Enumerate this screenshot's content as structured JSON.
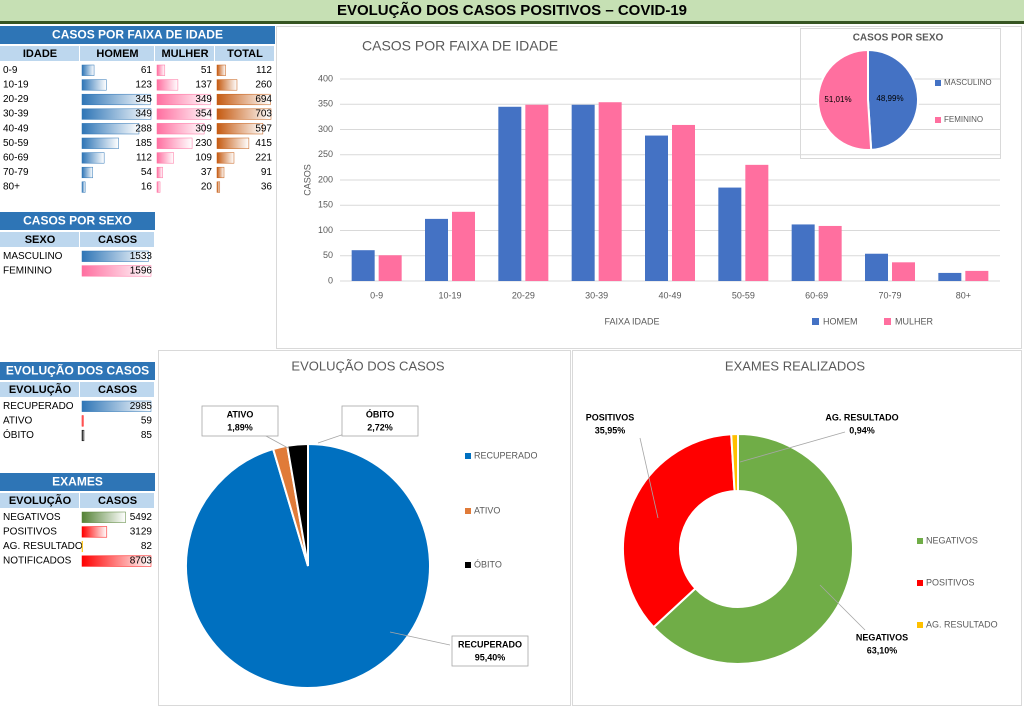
{
  "title": "EVOLUÇÃO DOS  CASOS POSITIVOS – COVID-19",
  "tables": [
    {
      "title": "CASOS POR FAIXA DE IDADE",
      "columns": [
        "IDADE",
        "HOMEM",
        "MULHER",
        "TOTAL"
      ],
      "rows": [
        [
          "0-9",
          61,
          51,
          112
        ],
        [
          "10-19",
          123,
          137,
          260
        ],
        [
          "20-29",
          345,
          349,
          694
        ],
        [
          "30-39",
          349,
          354,
          703
        ],
        [
          "40-49",
          288,
          309,
          597
        ],
        [
          "50-59",
          185,
          230,
          415
        ],
        [
          "60-69",
          112,
          109,
          221
        ],
        [
          "70-79",
          54,
          37,
          91
        ],
        [
          "80+",
          16,
          20,
          36
        ]
      ],
      "bar_colors_by": "column",
      "bar_colors": [
        "#2e75b6",
        "#ff6fa0",
        "#c55a11"
      ]
    },
    {
      "title": "CASOS POR SEXO",
      "columns": [
        "SEXO",
        "CASOS"
      ],
      "rows": [
        [
          "MASCULINO",
          1533
        ],
        [
          "FEMININO",
          1596
        ]
      ],
      "bar_colors_by": "row",
      "bar_colors": [
        "#2e75b6",
        "#ff6fa0"
      ]
    },
    {
      "title": "EVOLUÇÃO DOS CASOS",
      "columns": [
        "EVOLUÇÃO",
        "CASOS"
      ],
      "rows": [
        [
          "RECUPERADO",
          2985
        ],
        [
          "ATIVO",
          59
        ],
        [
          "ÓBITO",
          85
        ]
      ],
      "bar_colors_by": "row",
      "bar_colors": [
        "#2e75b6",
        "#ff0000",
        "#000000"
      ]
    },
    {
      "title": "EXAMES",
      "columns": [
        "EVOLUÇÃO",
        "CASOS"
      ],
      "rows": [
        [
          "NEGATIVOS",
          5492
        ],
        [
          "POSITIVOS",
          3129
        ],
        [
          "AG. RESULTADO",
          82
        ],
        [
          "NOTIFICADOS",
          8703
        ]
      ],
      "bar_colors_by": "row",
      "bar_colors": [
        "#548235",
        "#ff0000",
        "#ffc000",
        "#ff0000"
      ]
    }
  ],
  "chart_data": [
    {
      "type": "bar",
      "title": "CASOS POR FAIXA DE IDADE",
      "x_label": "FAIXA IDADE",
      "y_label": "CASOS",
      "categories": [
        "0-9",
        "10-19",
        "20-29",
        "30-39",
        "40-49",
        "50-59",
        "60-69",
        "70-79",
        "80+"
      ],
      "series": [
        {
          "name": "HOMEM",
          "color": "#4472c4",
          "values": [
            61,
            123,
            345,
            349,
            288,
            185,
            112,
            54,
            16
          ]
        },
        {
          "name": "MULHER",
          "color": "#ff6f9f",
          "values": [
            51,
            137,
            349,
            354,
            309,
            230,
            109,
            37,
            20
          ]
        }
      ],
      "ylim": [
        0,
        400
      ],
      "yticks": [
        0,
        50,
        100,
        150,
        200,
        250,
        300,
        350,
        400
      ],
      "grid": true,
      "legend": "bottom"
    },
    {
      "type": "pie",
      "title": "CASOS POR SEXO",
      "categories": [
        "MASCULINO",
        "FEMININO"
      ],
      "values": [
        48.99,
        51.01
      ],
      "value_labels": [
        "48,99%",
        "51,01%"
      ],
      "colors": [
        "#4472c4",
        "#ff6f9f"
      ],
      "legend": "right"
    },
    {
      "type": "pie",
      "title": "EVOLUÇÃO DOS CASOS",
      "categories": [
        "RECUPERADO",
        "ATIVO",
        "ÓBITO"
      ],
      "values": [
        95.4,
        1.89,
        2.72
      ],
      "value_labels": [
        "95,40%",
        "1,89%",
        "2,72%"
      ],
      "colors": [
        "#0070c0",
        "#e07b39",
        "#000000"
      ],
      "legend": "right"
    },
    {
      "type": "donut",
      "title": "EXAMES REALIZADOS",
      "categories": [
        "NEGATIVOS",
        "POSITIVOS",
        "AG. RESULTADO"
      ],
      "values": [
        63.1,
        35.95,
        0.94
      ],
      "value_labels": [
        "63,10%",
        "35,95%",
        "0,94%"
      ],
      "colors": [
        "#70ad47",
        "#ff0000",
        "#ffc000"
      ],
      "legend": "right"
    }
  ]
}
